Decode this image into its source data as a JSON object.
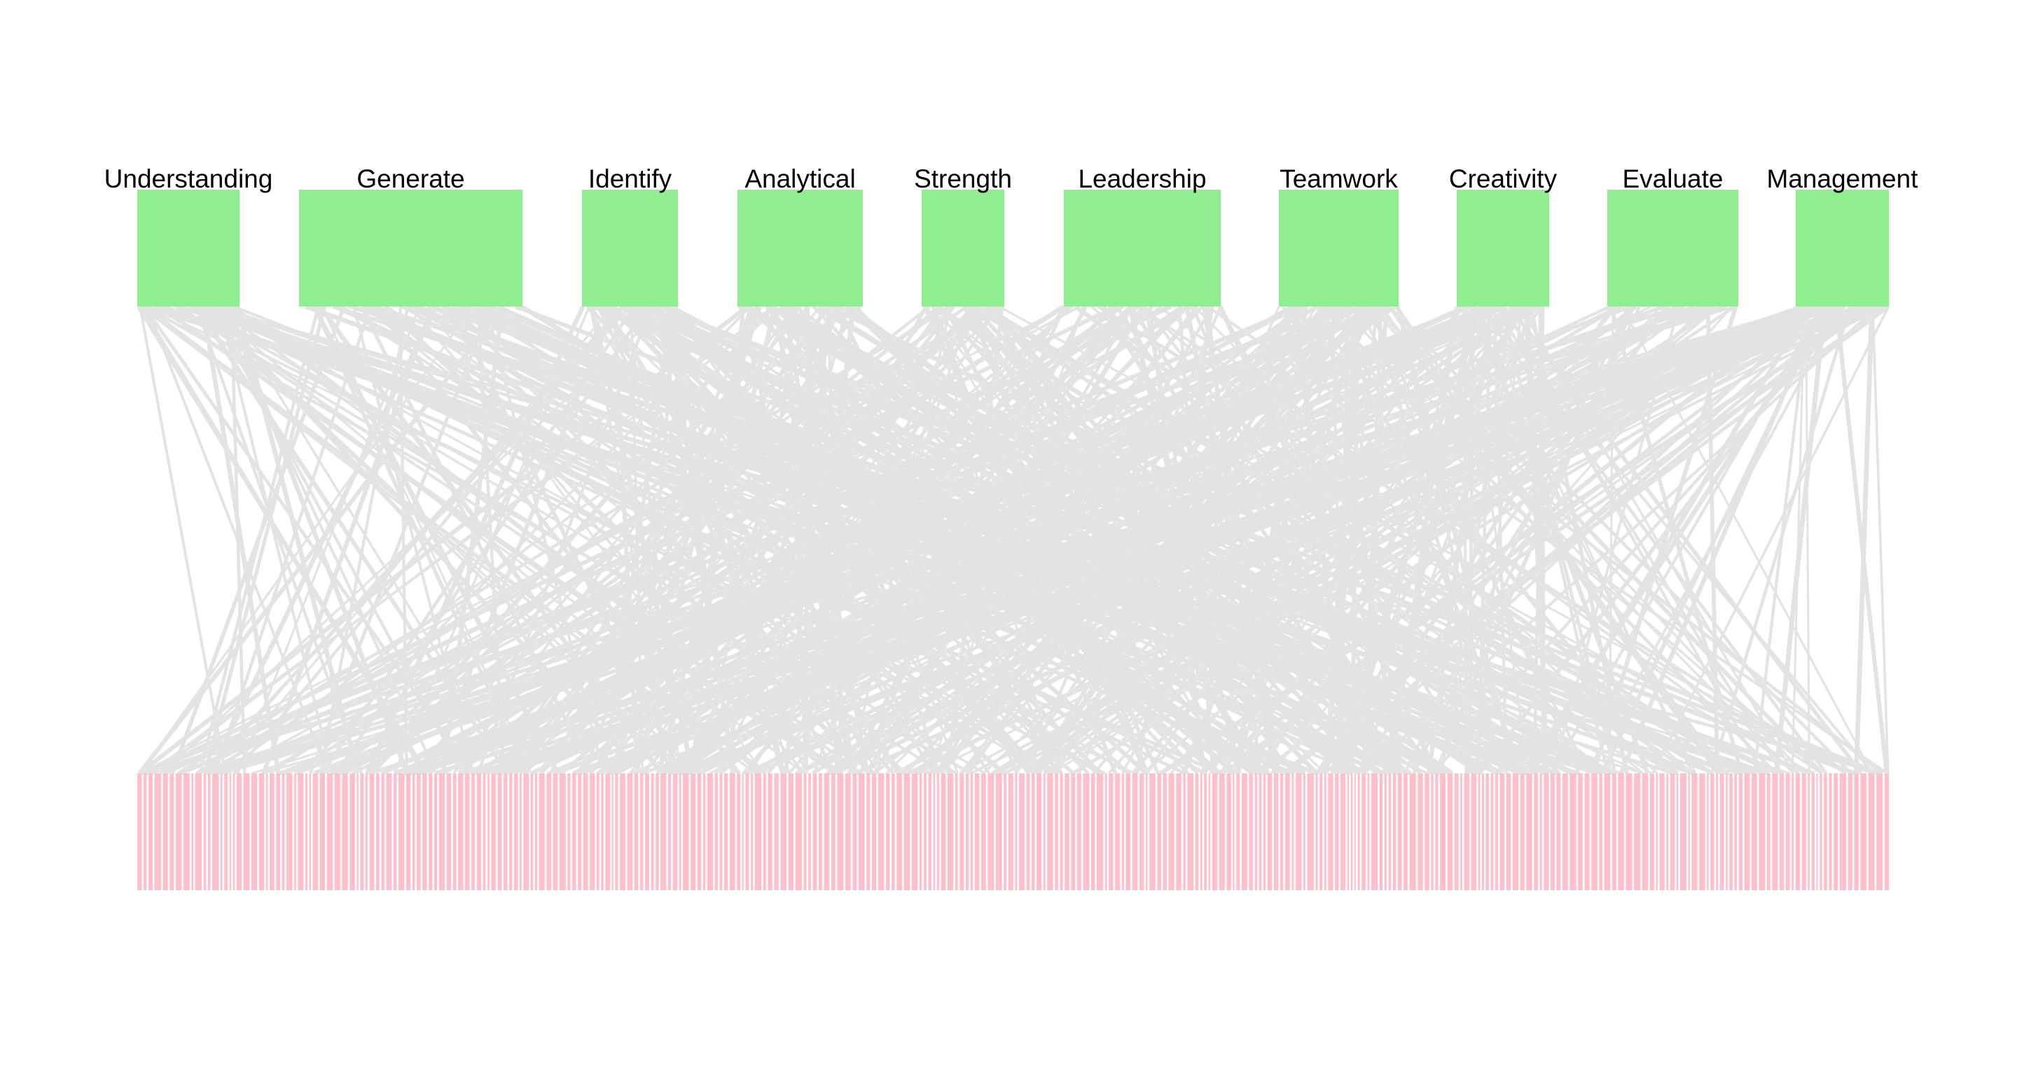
{
  "diagram": {
    "type": "bipartite-network",
    "colors": {
      "background": "#ffffff",
      "top_node_fill": "#90ee90",
      "bottom_node_fill": "#ffc0cb",
      "edge_stroke": "#e3e3e3",
      "label_text": "#000000"
    },
    "top_nodes": [
      {
        "label": "Understanding"
      },
      {
        "label": "Generate"
      },
      {
        "label": "Identify"
      },
      {
        "label": "Analytical"
      },
      {
        "label": "Strength"
      },
      {
        "label": "Leadership"
      },
      {
        "label": "Teamwork"
      },
      {
        "label": "Creativity"
      },
      {
        "label": "Evaluate"
      },
      {
        "label": "Management"
      }
    ],
    "bottom_node_count": 300,
    "edge_count": 620
  }
}
